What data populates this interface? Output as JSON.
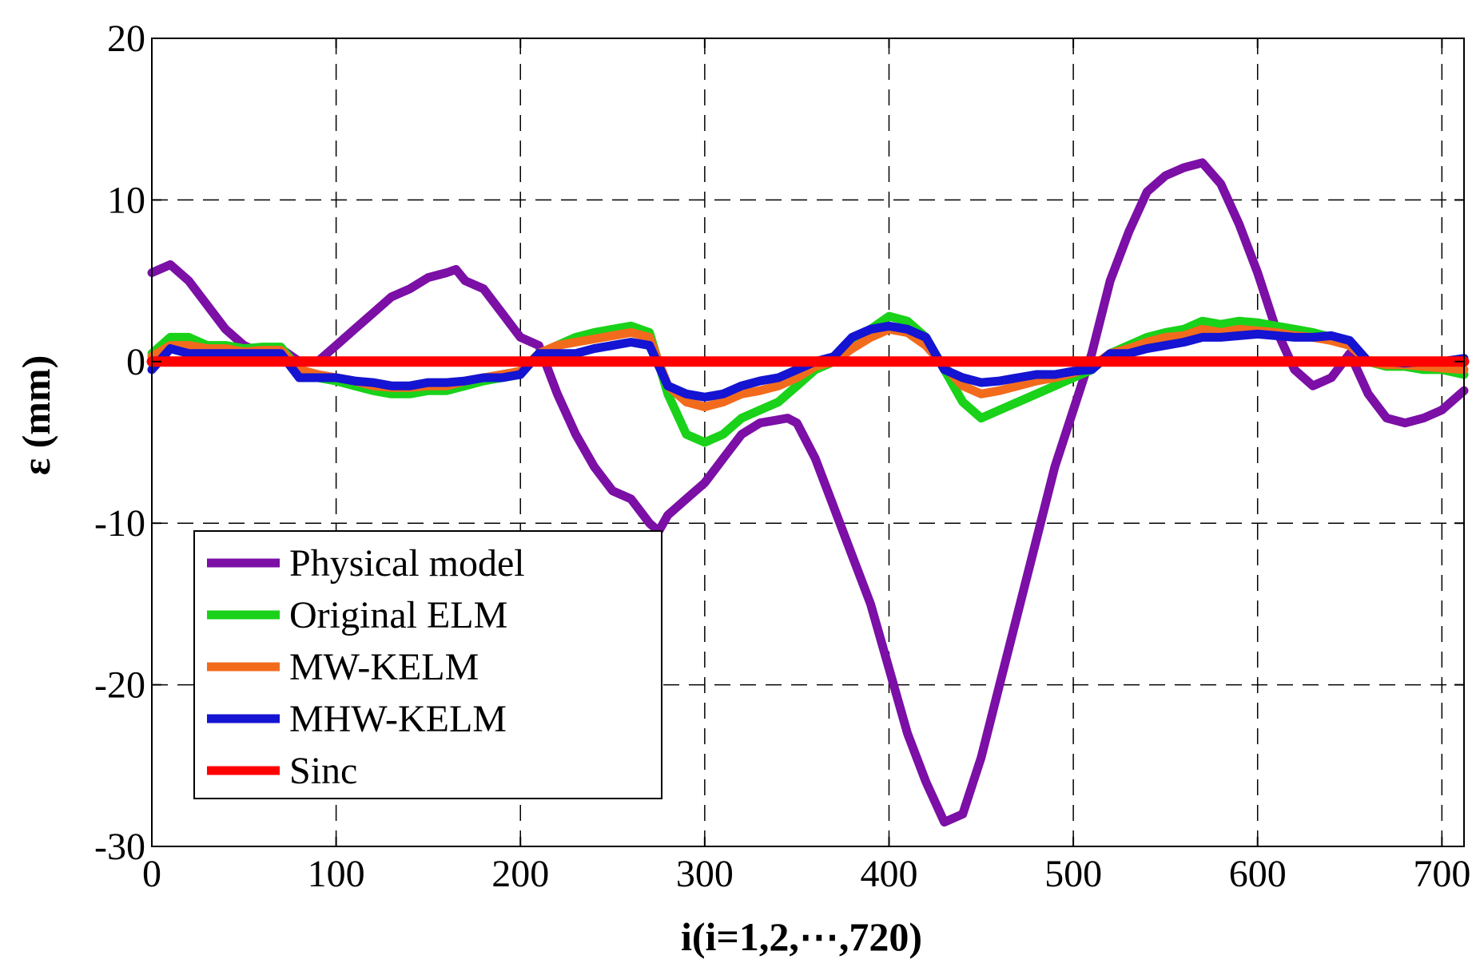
{
  "chart_data": {
    "type": "line",
    "title": "",
    "xlabel": "i(i=1,2,⋯,720)",
    "ylabel": "ε (mm)",
    "xlim": [
      0,
      712
    ],
    "ylim": [
      -30,
      20
    ],
    "grid": true,
    "legend_position": "bottom-left",
    "x_ticks": [
      0,
      100,
      200,
      300,
      400,
      500,
      600,
      700
    ],
    "y_ticks": [
      20,
      10,
      0,
      -10,
      -20,
      -30
    ],
    "x_tick_labels": [
      "0",
      "100",
      "200",
      "300",
      "400",
      "500",
      "600",
      "700"
    ],
    "y_tick_labels": [
      "20",
      "10",
      "0",
      "-10",
      "-20",
      "-30"
    ],
    "series": [
      {
        "name": "Physical model",
        "color": "#7B0FA6",
        "x": [
          0,
          10,
          20,
          30,
          40,
          50,
          60,
          70,
          80,
          90,
          100,
          110,
          120,
          130,
          140,
          150,
          160,
          165,
          170,
          180,
          190,
          200,
          210,
          220,
          230,
          240,
          250,
          260,
          270,
          275,
          280,
          290,
          300,
          310,
          320,
          330,
          340,
          345,
          350,
          360,
          370,
          380,
          390,
          400,
          410,
          420,
          430,
          440,
          450,
          460,
          470,
          480,
          490,
          500,
          510,
          520,
          530,
          540,
          550,
          560,
          570,
          580,
          590,
          600,
          610,
          620,
          630,
          640,
          650,
          660,
          670,
          680,
          690,
          700,
          712
        ],
        "values": [
          5.5,
          6,
          5,
          3.5,
          2,
          1,
          0.5,
          0.8,
          0,
          0,
          1,
          2,
          3,
          4,
          4.5,
          5.2,
          5.5,
          5.7,
          5,
          4.5,
          3,
          1.5,
          1,
          -2,
          -4.5,
          -6.5,
          -8,
          -8.5,
          -10,
          -10.5,
          -9.5,
          -8.5,
          -7.5,
          -6,
          -4.5,
          -3.8,
          -3.6,
          -3.5,
          -3.8,
          -6,
          -9,
          -12,
          -15,
          -19,
          -23,
          -26,
          -28.5,
          -28,
          -24.5,
          -20,
          -15.5,
          -11,
          -6.5,
          -3,
          0.5,
          5,
          8,
          10.5,
          11.5,
          12,
          12.3,
          11,
          8.5,
          5.5,
          2,
          -0.5,
          -1.5,
          -1,
          0.5,
          -2,
          -3.5,
          -3.8,
          -3.5,
          -3,
          -1.8
        ]
      },
      {
        "name": "Original ELM",
        "color": "#19D219",
        "x": [
          0,
          10,
          20,
          30,
          40,
          50,
          60,
          70,
          80,
          90,
          100,
          110,
          120,
          130,
          140,
          150,
          160,
          170,
          180,
          190,
          200,
          210,
          220,
          230,
          240,
          250,
          260,
          270,
          280,
          290,
          300,
          310,
          320,
          330,
          340,
          350,
          360,
          370,
          380,
          390,
          400,
          410,
          420,
          430,
          440,
          450,
          460,
          470,
          480,
          490,
          500,
          510,
          520,
          530,
          540,
          550,
          560,
          570,
          580,
          590,
          600,
          610,
          620,
          630,
          640,
          650,
          660,
          670,
          680,
          690,
          700,
          712
        ],
        "values": [
          0.5,
          1.5,
          1.5,
          1,
          1,
          0.8,
          0.9,
          0.9,
          -0.5,
          -1,
          -1.2,
          -1.5,
          -1.8,
          -2,
          -2,
          -1.8,
          -1.8,
          -1.5,
          -1.2,
          -1,
          -0.8,
          0.5,
          1,
          1.5,
          1.8,
          2,
          2.2,
          1.8,
          -2,
          -4.5,
          -5,
          -4.5,
          -3.5,
          -3,
          -2.5,
          -1.5,
          -0.5,
          0,
          1,
          2,
          2.8,
          2.5,
          1.5,
          -0.5,
          -2.5,
          -3.5,
          -3,
          -2.5,
          -2,
          -1.5,
          -1,
          -0.5,
          0.5,
          1,
          1.5,
          1.8,
          2,
          2.5,
          2.3,
          2.5,
          2.4,
          2.2,
          2,
          1.8,
          1.5,
          1.2,
          0,
          -0.3,
          -0.3,
          -0.5,
          -0.5,
          -0.8
        ]
      },
      {
        "name": "MW-KELM",
        "color": "#F26B1D",
        "x": [
          0,
          10,
          20,
          30,
          40,
          50,
          60,
          70,
          80,
          90,
          100,
          110,
          120,
          130,
          140,
          150,
          160,
          170,
          180,
          190,
          200,
          210,
          220,
          230,
          240,
          250,
          260,
          270,
          280,
          290,
          300,
          310,
          320,
          330,
          340,
          350,
          360,
          370,
          380,
          390,
          400,
          410,
          420,
          430,
          440,
          450,
          460,
          470,
          480,
          490,
          500,
          510,
          520,
          530,
          540,
          550,
          560,
          570,
          580,
          590,
          600,
          610,
          620,
          630,
          640,
          650,
          660,
          670,
          680,
          690,
          700,
          712
        ],
        "values": [
          0.3,
          1,
          1,
          0.8,
          0.8,
          0.6,
          0.7,
          0.7,
          -0.5,
          -0.8,
          -1,
          -1.2,
          -1.5,
          -1.6,
          -1.6,
          -1.5,
          -1.5,
          -1.2,
          -1,
          -0.8,
          -0.6,
          0.5,
          1,
          1.2,
          1.4,
          1.6,
          1.8,
          1.5,
          -1.5,
          -2.5,
          -2.8,
          -2.5,
          -2,
          -1.8,
          -1.5,
          -1,
          -0.3,
          0,
          0.8,
          1.5,
          2,
          1.8,
          1,
          -0.3,
          -1.5,
          -2,
          -1.8,
          -1.5,
          -1.2,
          -1,
          -0.7,
          -0.3,
          0.5,
          0.8,
          1.2,
          1.5,
          1.6,
          2,
          1.8,
          2,
          1.9,
          1.8,
          1.6,
          1.5,
          1.3,
          1,
          0,
          -0.2,
          -0.2,
          -0.3,
          -0.4,
          -0.5
        ]
      },
      {
        "name": "MHW-KELM",
        "color": "#1414D2",
        "x": [
          0,
          10,
          20,
          30,
          40,
          50,
          60,
          70,
          80,
          90,
          100,
          110,
          120,
          130,
          140,
          150,
          160,
          170,
          180,
          190,
          200,
          210,
          220,
          230,
          240,
          250,
          260,
          270,
          280,
          290,
          300,
          310,
          320,
          330,
          340,
          350,
          360,
          370,
          380,
          390,
          400,
          410,
          420,
          430,
          440,
          450,
          460,
          470,
          480,
          490,
          500,
          510,
          520,
          530,
          540,
          550,
          560,
          570,
          580,
          590,
          600,
          610,
          620,
          630,
          640,
          650,
          660,
          670,
          680,
          690,
          700,
          712
        ],
        "values": [
          -0.5,
          0.8,
          0.5,
          0.5,
          0.5,
          0.5,
          0.5,
          0.5,
          -1,
          -1,
          -1,
          -1.2,
          -1.3,
          -1.5,
          -1.5,
          -1.3,
          -1.3,
          -1.2,
          -1,
          -1,
          -0.8,
          0.5,
          0.5,
          0.5,
          0.8,
          1,
          1.2,
          1,
          -1.5,
          -2,
          -2.2,
          -2,
          -1.5,
          -1.2,
          -1,
          -0.5,
          0,
          0.3,
          1.5,
          2,
          2.2,
          2,
          1.5,
          -0.5,
          -1,
          -1.3,
          -1.2,
          -1,
          -0.8,
          -0.8,
          -0.6,
          -0.5,
          0.5,
          0.5,
          0.8,
          1,
          1.2,
          1.5,
          1.5,
          1.6,
          1.7,
          1.6,
          1.5,
          1.5,
          1.6,
          1.3,
          0,
          0,
          -0.1,
          0,
          0,
          0.2
        ]
      },
      {
        "name": "Sinc",
        "color": "#FF0000",
        "x": [
          0,
          712
        ],
        "values": [
          0,
          0
        ]
      }
    ]
  }
}
